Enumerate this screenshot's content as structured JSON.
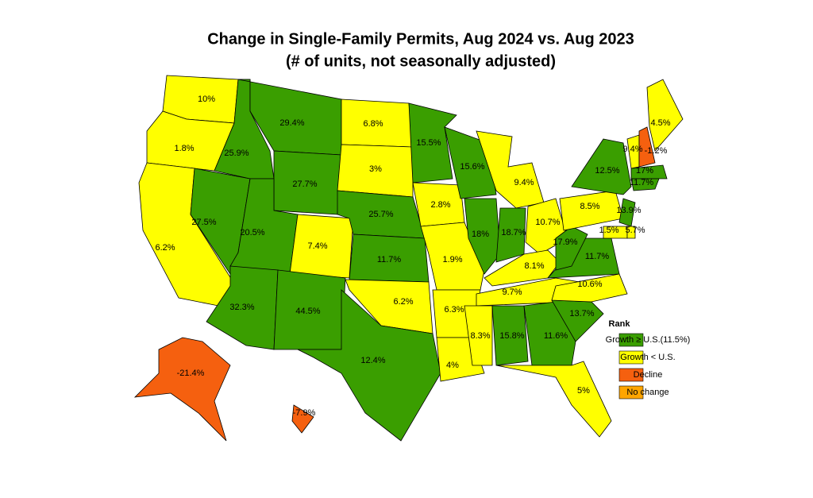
{
  "header": {
    "title": "Change in Single-Family Permits, Aug 2024 vs. Aug 2023",
    "subtitle": "(# of units, not seasonally adjusted)"
  },
  "map": {
    "regions": [
      {
        "label": "10%",
        "color": "#ffff00"
      },
      {
        "label": "1.8%",
        "color": "#ffff00"
      },
      {
        "label": "6.2%",
        "color": "#ffff00"
      },
      {
        "label": "27.5%",
        "color": "#3a9e00"
      },
      {
        "label": "25.9%",
        "color": "#3a9e00"
      },
      {
        "label": "29.4%",
        "color": "#3a9e00"
      },
      {
        "label": "27.7%",
        "color": "#3a9e00"
      },
      {
        "label": "20.5%",
        "color": "#3a9e00"
      },
      {
        "label": "7.4%",
        "color": "#ffff00"
      },
      {
        "label": "32.3%",
        "color": "#3a9e00"
      },
      {
        "label": "44.5%",
        "color": "#3a9e00"
      },
      {
        "label": "6.8%",
        "color": "#ffff00"
      },
      {
        "label": "3%",
        "color": "#ffff00"
      },
      {
        "label": "25.7%",
        "color": "#3a9e00"
      },
      {
        "label": "11.7%",
        "color": "#3a9e00"
      },
      {
        "label": "6.2%",
        "color": "#ffff00"
      },
      {
        "label": "12.4%",
        "color": "#3a9e00"
      },
      {
        "label": "15.5%",
        "color": "#3a9e00"
      },
      {
        "label": "2.8%",
        "color": "#ffff00"
      },
      {
        "label": "1.9%",
        "color": "#ffff00"
      },
      {
        "label": "6.3%",
        "color": "#ffff00"
      },
      {
        "label": "4%",
        "color": "#ffff00"
      },
      {
        "label": "15.6%",
        "color": "#3a9e00"
      },
      {
        "label": "18%",
        "color": "#3a9e00"
      },
      {
        "label": "9.4%",
        "color": "#ffff00"
      },
      {
        "label": "18.7%",
        "color": "#3a9e00"
      },
      {
        "label": "10.7%",
        "color": "#ffff00"
      },
      {
        "label": "8.1%",
        "color": "#ffff00"
      },
      {
        "label": "9.7%",
        "color": "#ffff00"
      },
      {
        "label": "8.3%",
        "color": "#ffff00"
      },
      {
        "label": "15.8%",
        "color": "#3a9e00"
      },
      {
        "label": "11.6%",
        "color": "#3a9e00"
      },
      {
        "label": "5%",
        "color": "#ffff00"
      },
      {
        "label": "13.7%",
        "color": "#3a9e00"
      },
      {
        "label": "10.6%",
        "color": "#ffff00"
      },
      {
        "label": "11.7%",
        "color": "#3a9e00"
      },
      {
        "label": "17.9%",
        "color": "#3a9e00"
      },
      {
        "label": "8.5%",
        "color": "#ffff00"
      },
      {
        "label": "12.5%",
        "color": "#3a9e00"
      },
      {
        "label": "13.9%",
        "color": "#3a9e00"
      },
      {
        "label": "1.5%",
        "color": "#ffff00"
      },
      {
        "label": "5.7%",
        "color": "#ffff00"
      },
      {
        "label": "9.4%",
        "color": "#ffff00"
      },
      {
        "label": "-1.2%",
        "color": "#f5600f"
      },
      {
        "label": "4.5%",
        "color": "#ffff00"
      },
      {
        "label": "17%",
        "color": "#3a9e00"
      },
      {
        "label": "11.7%",
        "color": "#3a9e00"
      },
      {
        "label": "-21.4%",
        "color": "#f5600f"
      },
      {
        "label": "-7.9%",
        "color": "#f5600f"
      }
    ]
  },
  "legend": {
    "title": "Rank",
    "items": [
      {
        "label": "Growth ≥ U.S.(11.5%)",
        "color": "#3a9e00"
      },
      {
        "label": "Growth < U.S.",
        "color": "#ffff00"
      },
      {
        "label": "Decline",
        "color": "#f5600f"
      },
      {
        "label": "No change",
        "color": "#ffa500"
      }
    ]
  }
}
